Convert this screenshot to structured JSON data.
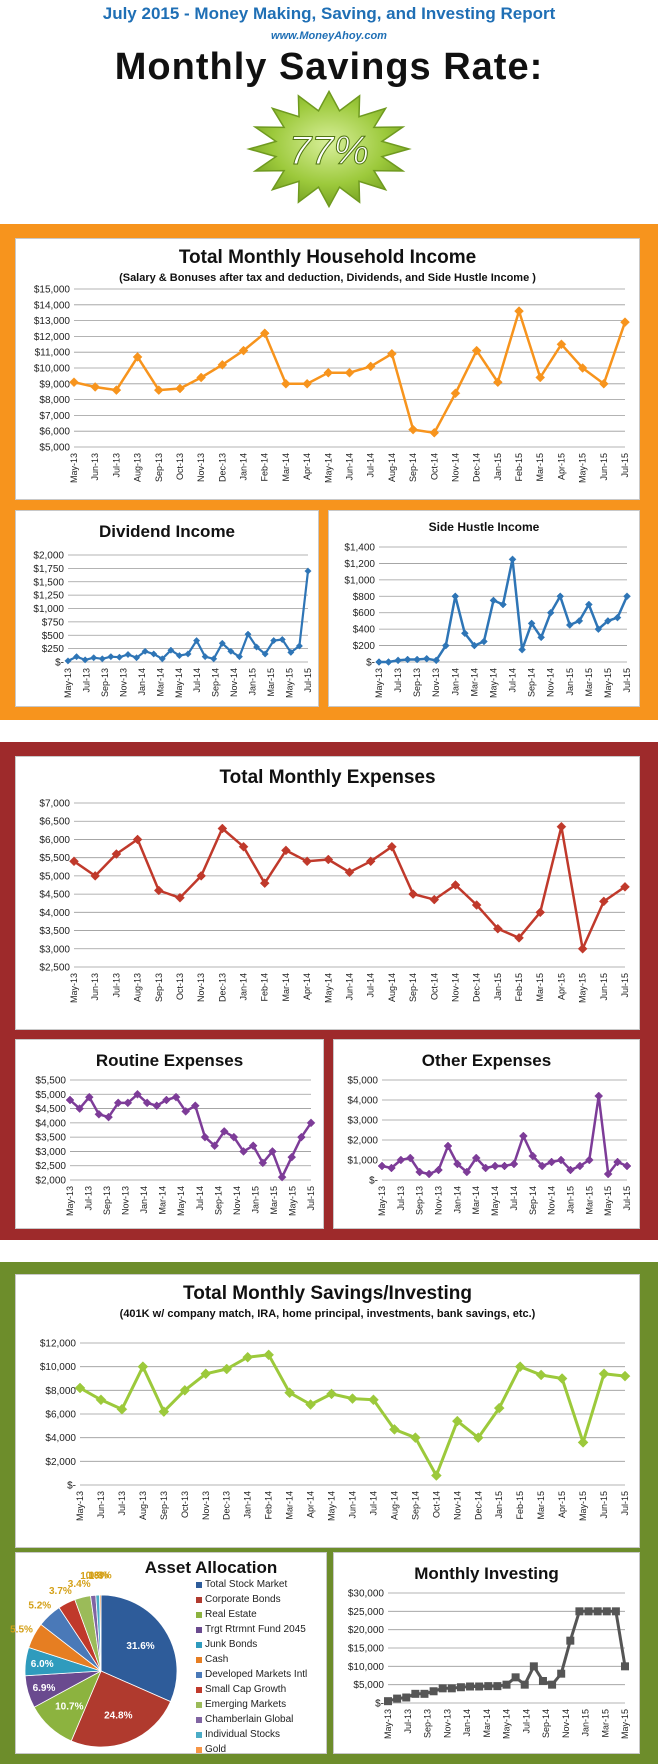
{
  "header": {
    "title": "July 2015 - Money Making, Saving, and Investing Report",
    "url": "www.MoneyAhoy.com",
    "rate_label": "Monthly Savings Rate:",
    "rate_value": "77%"
  },
  "colors": {
    "income_frame": "#f7941d",
    "expenses_frame": "#9e2a2b",
    "savings_frame": "#6d8d2b",
    "badge": "#9cc93b"
  },
  "chart_data": [
    {
      "id": "household-income",
      "type": "line",
      "title": "Total Monthly Household Income",
      "subtitle": "(Salary & Bonuses after tax and deduction, Dividends, and Side Hustle Income )",
      "color": "#f7941d",
      "ylim": [
        5000,
        15000
      ],
      "yticks": [
        5000,
        6000,
        7000,
        8000,
        9000,
        10000,
        11000,
        12000,
        13000,
        14000,
        15000
      ],
      "ytick_labels": [
        "$5,000",
        "$6,000",
        "$7,000",
        "$8,000",
        "$9,000",
        "$10,000",
        "$11,000",
        "$12,000",
        "$13,000",
        "$14,000",
        "$15,000"
      ],
      "x_labels": [
        "May-13",
        "Jun-13",
        "Jul-13",
        "Aug-13",
        "Sep-13",
        "Oct-13",
        "Nov-13",
        "Dec-13",
        "Jan-14",
        "Feb-14",
        "Mar-14",
        "Apr-14",
        "May-14",
        "Jun-14",
        "Jul-14",
        "Aug-14",
        "Sep-14",
        "Oct-14",
        "Nov-14",
        "Dec-14",
        "Jan-15",
        "Feb-15",
        "Mar-15",
        "Apr-15",
        "May-15",
        "Jun-15",
        "Jul-15"
      ],
      "values": [
        9100,
        8800,
        8600,
        10700,
        8600,
        8700,
        9400,
        10200,
        11100,
        12200,
        9000,
        9000,
        9700,
        9700,
        10100,
        10900,
        6100,
        5900,
        8400,
        11100,
        9100,
        13600,
        9400,
        11500,
        10000,
        9000,
        12900
      ]
    },
    {
      "id": "dividend-income",
      "type": "line",
      "title": "Dividend Income",
      "color": "#2e75b6",
      "ylim": [
        0,
        2000
      ],
      "yticks": [
        0,
        250,
        500,
        750,
        1000,
        1250,
        1500,
        1750,
        2000
      ],
      "ytick_labels": [
        "$-",
        "$250",
        "$500",
        "$750",
        "$1,000",
        "$1,250",
        "$1,500",
        "$1,750",
        "$2,000"
      ],
      "x_labels": [
        "May-13",
        "Jul-13",
        "Sep-13",
        "Nov-13",
        "Jan-14",
        "Mar-14",
        "May-14",
        "Jul-14",
        "Sep-14",
        "Nov-14",
        "Jan-15",
        "Mar-15",
        "May-15",
        "Jul-15"
      ],
      "values": [
        20,
        100,
        40,
        80,
        60,
        100,
        90,
        140,
        80,
        200,
        150,
        60,
        220,
        120,
        150,
        400,
        100,
        60,
        350,
        200,
        100,
        520,
        280,
        150,
        400,
        420,
        180,
        300,
        1700
      ]
    },
    {
      "id": "side-hustle-income",
      "type": "line",
      "title": "Side Hustle Income",
      "color": "#2e75b6",
      "ylim": [
        0,
        1400
      ],
      "yticks": [
        0,
        200,
        400,
        600,
        800,
        1000,
        1200,
        1400
      ],
      "ytick_labels": [
        "$-",
        "$200",
        "$400",
        "$600",
        "$800",
        "$1,000",
        "$1,200",
        "$1,400"
      ],
      "x_labels": [
        "May-13",
        "Jul-13",
        "Sep-13",
        "Nov-13",
        "Jan-14",
        "Mar-14",
        "May-14",
        "Jul-14",
        "Sep-14",
        "Nov-14",
        "Jan-15",
        "Mar-15",
        "May-15",
        "Jul-15"
      ],
      "values": [
        0,
        0,
        20,
        30,
        30,
        40,
        20,
        200,
        800,
        350,
        200,
        250,
        750,
        700,
        1250,
        150,
        470,
        300,
        600,
        800,
        450,
        500,
        700,
        400,
        500,
        540,
        800
      ]
    },
    {
      "id": "total-expenses",
      "type": "line",
      "title": "Total Monthly Expenses",
      "color": "#c0392b",
      "ylim": [
        2500,
        7000
      ],
      "yticks": [
        2500,
        3000,
        3500,
        4000,
        4500,
        5000,
        5500,
        6000,
        6500,
        7000
      ],
      "ytick_labels": [
        "$2,500",
        "$3,000",
        "$3,500",
        "$4,000",
        "$4,500",
        "$5,000",
        "$5,500",
        "$6,000",
        "$6,500",
        "$7,000"
      ],
      "x_labels": [
        "May-13",
        "Jun-13",
        "Jul-13",
        "Aug-13",
        "Sep-13",
        "Oct-13",
        "Nov-13",
        "Dec-13",
        "Jan-14",
        "Feb-14",
        "Mar-14",
        "Apr-14",
        "May-14",
        "Jun-14",
        "Jul-14",
        "Aug-14",
        "Sep-14",
        "Oct-14",
        "Nov-14",
        "Dec-14",
        "Jan-15",
        "Feb-15",
        "Mar-15",
        "Apr-15",
        "May-15",
        "Jun-15",
        "Jul-15"
      ],
      "values": [
        5400,
        5000,
        5600,
        6000,
        4600,
        4400,
        5000,
        6300,
        5800,
        4800,
        5700,
        5400,
        5450,
        5100,
        5400,
        5800,
        4500,
        4350,
        4750,
        4200,
        3550,
        3300,
        4000,
        6350,
        3000,
        4300,
        4700
      ]
    },
    {
      "id": "routine-expenses",
      "type": "line",
      "title": "Routine Expenses",
      "color": "#7d3c98",
      "ylim": [
        2000,
        5500
      ],
      "yticks": [
        2000,
        2500,
        3000,
        3500,
        4000,
        4500,
        5000,
        5500
      ],
      "ytick_labels": [
        "$2,000",
        "$2,500",
        "$3,000",
        "$3,500",
        "$4,000",
        "$4,500",
        "$5,000",
        "$5,500"
      ],
      "x_labels": [
        "May-13",
        "Jul-13",
        "Sep-13",
        "Nov-13",
        "Jan-14",
        "Mar-14",
        "May-14",
        "Jul-14",
        "Sep-14",
        "Nov-14",
        "Jan-15",
        "Mar-15",
        "May-15",
        "Jul-15"
      ],
      "values": [
        4800,
        4500,
        4900,
        4300,
        4200,
        4700,
        4700,
        5000,
        4700,
        4600,
        4800,
        4900,
        4400,
        4600,
        3500,
        3200,
        3700,
        3500,
        3000,
        3200,
        2600,
        3000,
        2100,
        2800,
        3500,
        4000
      ]
    },
    {
      "id": "other-expenses",
      "type": "line",
      "title": "Other Expenses",
      "color": "#7d3c98",
      "ylim": [
        0,
        5000
      ],
      "yticks": [
        0,
        1000,
        2000,
        3000,
        4000,
        5000
      ],
      "ytick_labels": [
        "$-",
        "$1,000",
        "$2,000",
        "$3,000",
        "$4,000",
        "$5,000"
      ],
      "x_labels": [
        "May-13",
        "Jul-13",
        "Sep-13",
        "Nov-13",
        "Jan-14",
        "Mar-14",
        "May-14",
        "Jul-14",
        "Sep-14",
        "Nov-14",
        "Jan-15",
        "Mar-15",
        "May-15",
        "Jul-15"
      ],
      "values": [
        700,
        600,
        1000,
        1100,
        400,
        300,
        500,
        1700,
        800,
        400,
        1100,
        600,
        700,
        700,
        800,
        2200,
        1200,
        700,
        900,
        1000,
        500,
        700,
        1000,
        4200,
        300,
        900,
        700
      ]
    },
    {
      "id": "total-savings",
      "type": "line",
      "title": "Total Monthly Savings/Investing",
      "subtitle": "(401K w/ company match, IRA, home principal, investments, bank savings, etc.)",
      "color": "#9cc93b",
      "ylim": [
        0,
        12000
      ],
      "yticks": [
        0,
        2000,
        4000,
        6000,
        8000,
        10000,
        12000
      ],
      "ytick_labels": [
        "$-",
        "$2,000",
        "$4,000",
        "$6,000",
        "$8,000",
        "$10,000",
        "$12,000"
      ],
      "x_labels": [
        "May-13",
        "Jun-13",
        "Jul-13",
        "Aug-13",
        "Sep-13",
        "Oct-13",
        "Nov-13",
        "Dec-13",
        "Jan-14",
        "Feb-14",
        "Mar-14",
        "Apr-14",
        "May-14",
        "Jun-14",
        "Jul-14",
        "Aug-14",
        "Sep-14",
        "Oct-14",
        "Nov-14",
        "Dec-14",
        "Jan-15",
        "Feb-15",
        "Mar-15",
        "Apr-15",
        "May-15",
        "Jun-15",
        "Jul-15"
      ],
      "values": [
        8200,
        7200,
        6400,
        10000,
        6200,
        8000,
        9400,
        9800,
        10800,
        11000,
        7800,
        6800,
        7700,
        7300,
        7200,
        4700,
        4000,
        800,
        5400,
        4000,
        6500,
        10000,
        9300,
        9000,
        3600,
        9400,
        9200
      ]
    },
    {
      "id": "asset-allocation",
      "type": "pie",
      "title": "Asset Allocation",
      "slices": [
        {
          "label": "Total Stock Market",
          "pct": 31.6,
          "value_label": "31.6%",
          "color": "#2e5c9a"
        },
        {
          "label": "Corporate Bonds",
          "pct": 24.8,
          "value_label": "24.8%",
          "color": "#b03a2e"
        },
        {
          "label": "Real Estate",
          "pct": 10.7,
          "value_label": "10.7%",
          "color": "#8cb33f"
        },
        {
          "label": "Trgt Rtrmnt Fund 2045",
          "pct": 6.9,
          "value_label": "6.9%",
          "color": "#6a4a8f"
        },
        {
          "label": "Junk Bonds",
          "pct": 6.0,
          "value_label": "6.0%",
          "color": "#2f9bbd"
        },
        {
          "label": "Cash",
          "pct": 5.5,
          "value_label": "5.5%",
          "color": "#e67e22"
        },
        {
          "label": "Developed Markets Intl",
          "pct": 5.2,
          "value_label": "5.2%",
          "color": "#4a79b8"
        },
        {
          "label": "Small Cap Growth",
          "pct": 3.7,
          "value_label": "3.7%",
          "color": "#c0392b"
        },
        {
          "label": "Emerging Markets",
          "pct": 3.4,
          "value_label": "3.4%",
          "color": "#9bbb59"
        },
        {
          "label": "Chamberlain Global",
          "pct": 1.1,
          "value_label": "1.1%",
          "color": "#8064a2"
        },
        {
          "label": "Individual Stocks",
          "pct": 0.8,
          "value_label": "0.8%",
          "color": "#4bacc6"
        },
        {
          "label": "Gold",
          "pct": 0.3,
          "value_label": "0.3%",
          "color": "#f79646"
        }
      ]
    },
    {
      "id": "monthly-investing",
      "type": "line",
      "title": "Monthly Investing",
      "color": "#555555",
      "ylim": [
        0,
        30000
      ],
      "yticks": [
        0,
        5000,
        10000,
        15000,
        20000,
        25000,
        30000
      ],
      "ytick_labels": [
        "$-",
        "$5,000",
        "$10,000",
        "$15,000",
        "$20,000",
        "$25,000",
        "$30,000"
      ],
      "x_labels": [
        "May-13",
        "Jul-13",
        "Sep-13",
        "Nov-13",
        "Jan-14",
        "Mar-14",
        "May-14",
        "Jul-14",
        "Sep-14",
        "Nov-14",
        "Jan-15",
        "Mar-15",
        "May-15"
      ],
      "values": [
        500,
        1200,
        1500,
        2500,
        2500,
        3200,
        4000,
        4000,
        4300,
        4500,
        4500,
        4600,
        4600,
        5000,
        7000,
        5000,
        10000,
        6000,
        5000,
        8000,
        17000,
        25000,
        25000,
        25000,
        25000,
        25000,
        10000
      ]
    }
  ]
}
